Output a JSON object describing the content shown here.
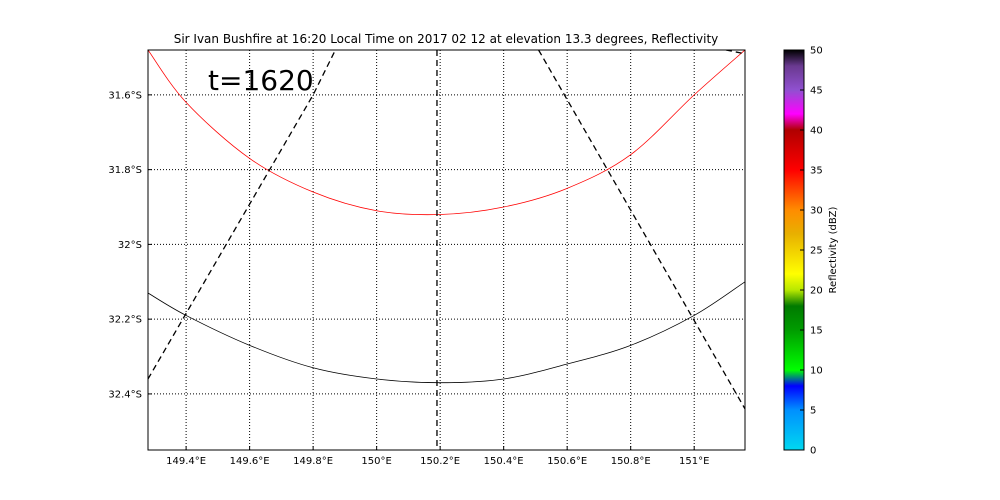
{
  "chart_data": {
    "type": "line",
    "title": "Sir Ivan Bushfire at 16:20 Local Time on 2017 02 12 at elevation 13.3 degrees, Reflectivity",
    "annotation": "t=1620",
    "xlim": [
      149.28,
      151.16
    ],
    "ylim": [
      -32.55,
      -31.48
    ],
    "x_ticks": [
      149.4,
      149.6,
      149.8,
      150.0,
      150.2,
      150.4,
      150.6,
      150.8,
      151.0
    ],
    "x_tick_labels": [
      "149.4°E",
      "149.6°E",
      "149.8°E",
      "150°E",
      "150.2°E",
      "150.4°E",
      "150.6°E",
      "150.8°E",
      "151°E"
    ],
    "y_ticks": [
      -31.6,
      -31.8,
      -32.0,
      -32.2,
      -32.4
    ],
    "y_tick_labels": [
      "31.6°S",
      "31.8°S",
      "32°S",
      "32.2°S",
      "32.4°S"
    ],
    "grid": true,
    "series": [
      {
        "color": "#ff0000",
        "style": "solid",
        "x": [
          149.28,
          149.4,
          149.6,
          149.8,
          150.0,
          150.2,
          150.4,
          150.6,
          150.8,
          151.0,
          151.16
        ],
        "y": [
          -31.48,
          -31.62,
          -31.77,
          -31.86,
          -31.91,
          -31.92,
          -31.9,
          -31.85,
          -31.76,
          -31.6,
          -31.48
        ]
      },
      {
        "color": "#000000",
        "style": "solid",
        "x": [
          149.28,
          149.4,
          149.6,
          149.8,
          150.0,
          150.2,
          150.4,
          150.6,
          150.8,
          151.0,
          151.16
        ],
        "y": [
          -32.13,
          -32.19,
          -32.27,
          -32.33,
          -32.36,
          -32.37,
          -32.36,
          -32.32,
          -32.27,
          -32.19,
          -32.1
        ]
      },
      {
        "color": "#000000",
        "style": "dashed",
        "x": [
          149.28,
          149.8,
          149.87
        ],
        "y": [
          -32.36,
          -31.6,
          -31.48
        ]
      },
      {
        "color": "#000000",
        "style": "dashed",
        "x": [
          150.19,
          150.19
        ],
        "y": [
          -31.48,
          -32.55
        ]
      },
      {
        "color": "#000000",
        "style": "dashed",
        "x": [
          150.51,
          151.16
        ],
        "y": [
          -31.48,
          -32.44
        ]
      },
      {
        "color": "#000000",
        "style": "dashed",
        "x": [
          151.1,
          151.16
        ],
        "y": [
          -31.48,
          -31.49
        ]
      }
    ],
    "colorbar": {
      "label": "Reflectivity (dBZ)",
      "min": 0,
      "max": 50,
      "ticks": [
        0,
        5,
        10,
        15,
        20,
        25,
        30,
        35,
        40,
        45,
        50
      ],
      "tick_labels": [
        "0",
        "5",
        "10",
        "15",
        "20",
        "25",
        "30",
        "35",
        "40",
        "45",
        "50"
      ],
      "stops": [
        {
          "value": 0,
          "color": "#00d8f0"
        },
        {
          "value": 5,
          "color": "#0090ff"
        },
        {
          "value": 8,
          "color": "#0000ff"
        },
        {
          "value": 10,
          "color": "#00ff00"
        },
        {
          "value": 15,
          "color": "#009c00"
        },
        {
          "value": 18,
          "color": "#007a00"
        },
        {
          "value": 20,
          "color": "#b8e800"
        },
        {
          "value": 22,
          "color": "#ffff00"
        },
        {
          "value": 27,
          "color": "#e8b000"
        },
        {
          "value": 30,
          "color": "#ff8c00"
        },
        {
          "value": 35,
          "color": "#ff0000"
        },
        {
          "value": 38,
          "color": "#d00000"
        },
        {
          "value": 40,
          "color": "#b00000"
        },
        {
          "value": 42,
          "color": "#ff00ff"
        },
        {
          "value": 45,
          "color": "#9050d0"
        },
        {
          "value": 48,
          "color": "#6a3a90"
        },
        {
          "value": 50,
          "color": "#000000"
        }
      ]
    }
  }
}
